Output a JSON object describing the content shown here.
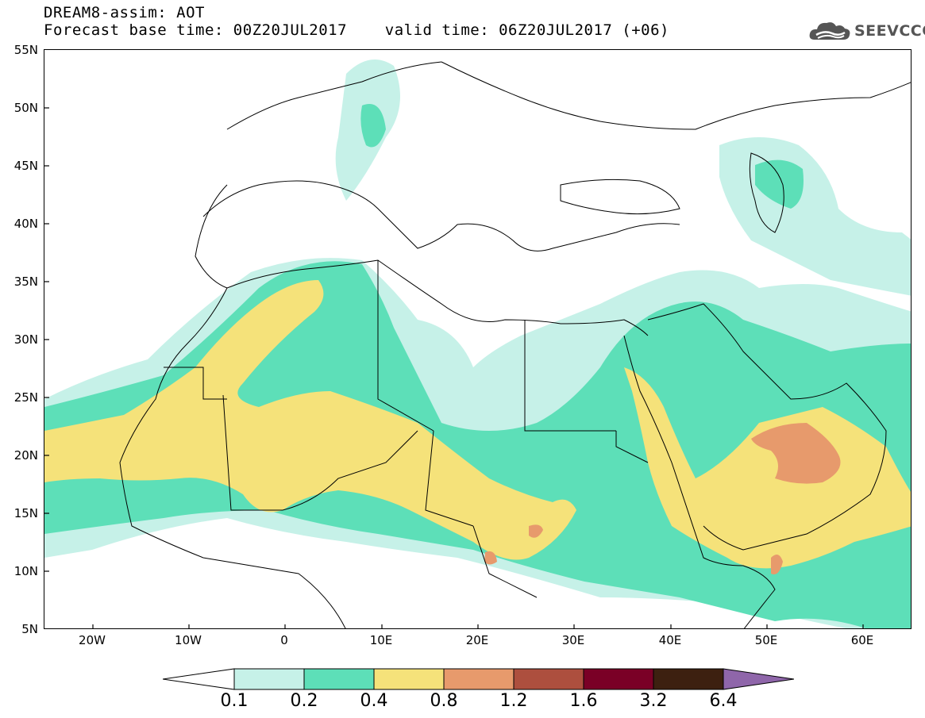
{
  "header": {
    "line1": "DREAM8-assim: AOT",
    "line2": "Forecast base time: 00Z20JUL2017    valid time: 06Z20JUL2017 (+06)"
  },
  "logo": {
    "text": "SEEVCCC",
    "icon": "cloud-icon"
  },
  "map": {
    "lat_labels": [
      "55N",
      "50N",
      "45N",
      "40N",
      "35N",
      "30N",
      "25N",
      "20N",
      "15N",
      "10N",
      "5N"
    ],
    "lon_labels": [
      "20W",
      "10W",
      "0",
      "10E",
      "20E",
      "30E",
      "40E",
      "50E",
      "60E"
    ],
    "lon_range": [
      -25,
      65
    ],
    "lat_range": [
      5,
      55
    ],
    "colors": {
      "c1": "#c6f1e8",
      "c2": "#5ddfb8",
      "c3": "#f5e27a",
      "c4": "#e79a6c",
      "c5": "#ad4f3e",
      "c6": "#7a0026",
      "c7": "#3d2010",
      "c8": "#8f66aa"
    }
  },
  "colorbar": {
    "labels": [
      "0.1",
      "0.2",
      "0.4",
      "0.8",
      "1.2",
      "1.6",
      "3.2",
      "6.4"
    ],
    "colors": [
      "#c6f1e8",
      "#5ddfb8",
      "#f5e27a",
      "#e79a6c",
      "#ad4f3e",
      "#7a0026",
      "#3d2010"
    ],
    "under_color": "#ffffff",
    "over_color": "#8f66aa"
  }
}
